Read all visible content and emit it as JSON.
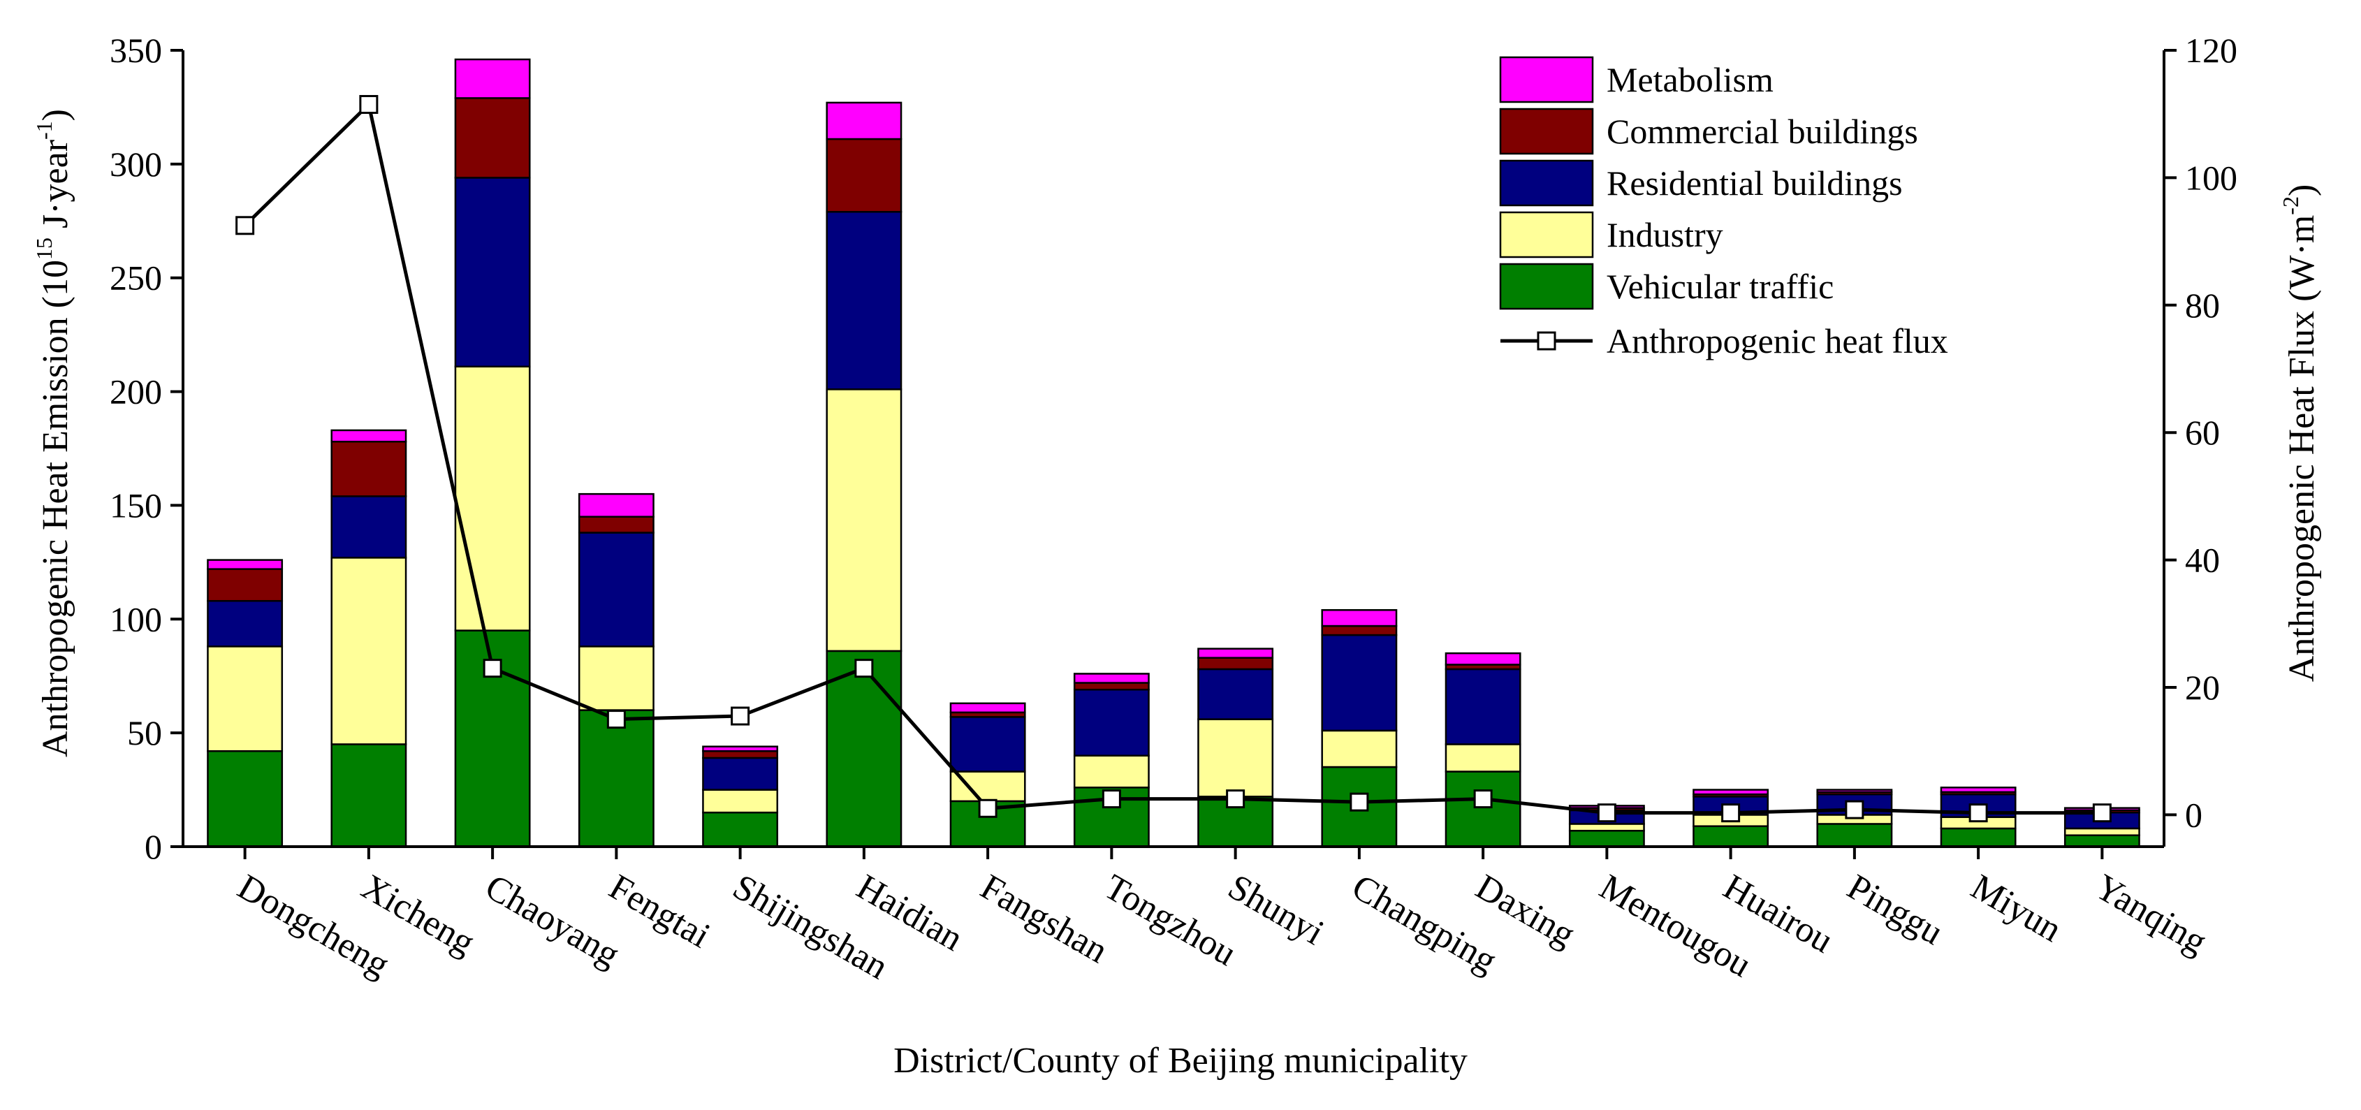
{
  "chart_data": {
    "type": "bar",
    "stacked": true,
    "title": "",
    "xlabel": "District/County of Beijing municipality",
    "ylabel": "Anthropogenic Heat Emission (10",
    "ylabel_sup": "15",
    "ylabel_unit": " J·year",
    "ylabel_unit_sup": "-1",
    "ylabel_close": ")",
    "y2label": "Anthropogenic Heat Flux (W·m",
    "y2label_sup": "-2",
    "y2label_close": ")",
    "ylim": [
      0,
      350
    ],
    "yticks": [
      0,
      50,
      100,
      150,
      200,
      250,
      300,
      350
    ],
    "y2lim": [
      -5,
      120
    ],
    "y2ticks": [
      0,
      20,
      40,
      60,
      80,
      100,
      120
    ],
    "grid": false,
    "legend_position": "top-right",
    "categories": [
      "Dongcheng",
      "Xicheng",
      "Chaoyang",
      "Fengtai",
      "Shijingshan",
      "Haidian",
      "Fangshan",
      "Tongzhou",
      "Shunyi",
      "Changping",
      "Daxing",
      "Mentougou",
      "Huairou",
      "Pinggu",
      "Miyun",
      "Yanqing"
    ],
    "series": [
      {
        "name": "Vehicular traffic",
        "color": "#007f00",
        "values": [
          42,
          45,
          95,
          60,
          15,
          86,
          20,
          26,
          22,
          35,
          33,
          7,
          9,
          10,
          8,
          5
        ]
      },
      {
        "name": "Industry",
        "color": "#ffff99",
        "values": [
          46,
          82,
          116,
          28,
          10,
          115,
          13,
          14,
          34,
          16,
          12,
          3,
          5,
          4,
          5,
          3
        ]
      },
      {
        "name": "Residential buildings",
        "color": "#00007f",
        "values": [
          20,
          27,
          83,
          50,
          14,
          78,
          24,
          29,
          22,
          42,
          33,
          6,
          8,
          9,
          10,
          7
        ]
      },
      {
        "name": "Commercial buildings",
        "color": "#7f0000",
        "values": [
          14,
          24,
          35,
          7,
          3,
          32,
          2,
          3,
          5,
          4,
          2,
          1,
          1,
          1,
          1,
          1
        ]
      },
      {
        "name": "Metabolism",
        "color": "#ff00ff",
        "values": [
          4,
          5,
          17,
          10,
          2,
          16,
          4,
          4,
          4,
          7,
          5,
          1,
          2,
          1,
          2,
          1
        ]
      }
    ],
    "line_series": {
      "name": "Anthropogenic heat flux",
      "axis": "right",
      "values": [
        92.5,
        111.5,
        23,
        15,
        15.5,
        23,
        1,
        2.5,
        2.5,
        2,
        2.5,
        0.3,
        0.3,
        0.8,
        0.3,
        0.3
      ]
    }
  }
}
